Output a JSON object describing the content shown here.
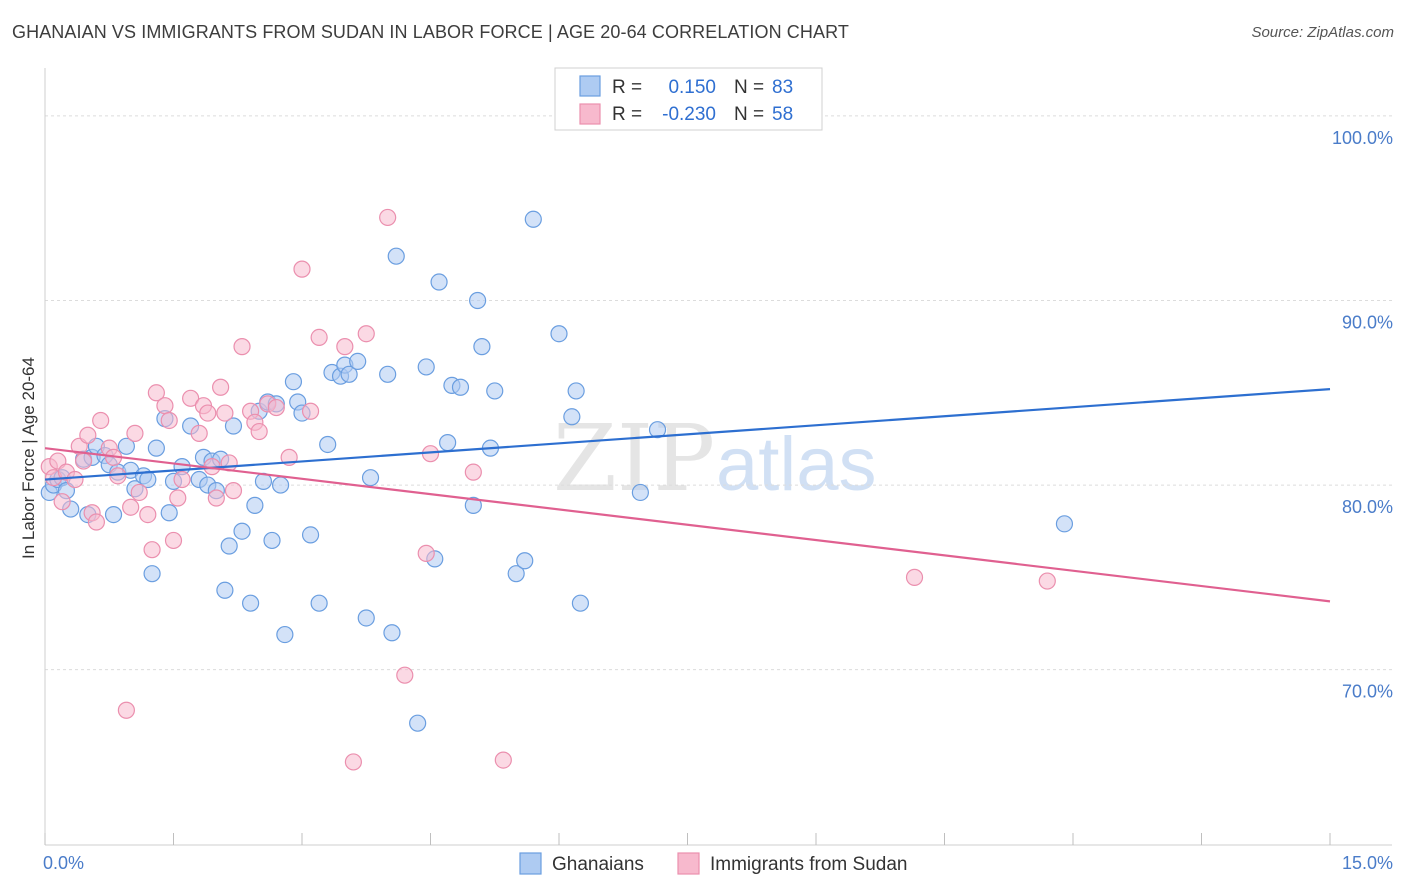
{
  "title": "GHANAIAN VS IMMIGRANTS FROM SUDAN IN LABOR FORCE | AGE 20-64 CORRELATION CHART",
  "source": "Source: ZipAtlas.com",
  "colors": {
    "blue_fill": "#aecbf2",
    "blue_stroke": "#6a9ee0",
    "blue_line": "#2d6fd0",
    "pink_fill": "#f7b9cd",
    "pink_stroke": "#eb8fae",
    "pink_line": "#e06090",
    "grid": "#dcdcdc",
    "tick_text": "#4a7cc9"
  },
  "legend": {
    "r_label": "R =",
    "n_label": "N =",
    "series": [
      {
        "r": "0.150",
        "n": "83"
      },
      {
        "r": "-0.230",
        "n": "58"
      }
    ]
  },
  "watermark": {
    "zip": "ZIP",
    "atlas": "atlas"
  },
  "chart_data": {
    "type": "scatter",
    "title": "GHANAIAN VS IMMIGRANTS FROM SUDAN IN LABOR FORCE | AGE 20-64 CORRELATION CHART",
    "xlabel": "",
    "ylabel": "In Labor Force | Age 20-64",
    "xlim": [
      0,
      15
    ],
    "ylim": [
      60.5,
      102
    ],
    "x_tick_labels": [
      "0.0%",
      "15.0%"
    ],
    "y_ticks": [
      70,
      80,
      90,
      100
    ],
    "y_tick_labels": [
      "70.0%",
      "80.0%",
      "90.0%",
      "100.0%"
    ],
    "grid": true,
    "legend_placement": "top-center",
    "series": [
      {
        "name": "Ghanaians",
        "r": 0.15,
        "n": 83,
        "trend": {
          "x": [
            0,
            15
          ],
          "y": [
            80.3,
            85.2
          ]
        },
        "points": [
          [
            0.05,
            79.6
          ],
          [
            0.1,
            80.0
          ],
          [
            0.15,
            80.3
          ],
          [
            0.2,
            80.4
          ],
          [
            0.25,
            79.7
          ],
          [
            0.3,
            78.7
          ],
          [
            0.45,
            81.4
          ],
          [
            0.5,
            78.4
          ],
          [
            0.55,
            81.5
          ],
          [
            0.6,
            82.1
          ],
          [
            0.7,
            81.6
          ],
          [
            0.75,
            81.1
          ],
          [
            0.8,
            78.4
          ],
          [
            0.85,
            80.7
          ],
          [
            0.95,
            82.1
          ],
          [
            1.0,
            80.8
          ],
          [
            1.05,
            79.8
          ],
          [
            1.15,
            80.5
          ],
          [
            1.2,
            80.3
          ],
          [
            1.25,
            75.2
          ],
          [
            1.3,
            82.0
          ],
          [
            1.4,
            83.6
          ],
          [
            1.45,
            78.5
          ],
          [
            1.5,
            80.2
          ],
          [
            1.6,
            81.0
          ],
          [
            1.7,
            83.2
          ],
          [
            1.8,
            80.3
          ],
          [
            1.85,
            81.5
          ],
          [
            1.9,
            80.0
          ],
          [
            1.95,
            81.3
          ],
          [
            2.0,
            79.7
          ],
          [
            2.05,
            81.4
          ],
          [
            2.1,
            74.3
          ],
          [
            2.15,
            76.7
          ],
          [
            2.2,
            83.2
          ],
          [
            2.3,
            77.5
          ],
          [
            2.4,
            73.6
          ],
          [
            2.45,
            78.9
          ],
          [
            2.5,
            84.0
          ],
          [
            2.55,
            80.2
          ],
          [
            2.6,
            84.5
          ],
          [
            2.65,
            77.0
          ],
          [
            2.7,
            84.4
          ],
          [
            2.75,
            80.0
          ],
          [
            2.8,
            71.9
          ],
          [
            2.9,
            85.6
          ],
          [
            2.95,
            84.5
          ],
          [
            3.0,
            83.9
          ],
          [
            3.1,
            77.3
          ],
          [
            3.2,
            73.6
          ],
          [
            3.3,
            82.2
          ],
          [
            3.35,
            86.1
          ],
          [
            3.45,
            85.9
          ],
          [
            3.5,
            86.5
          ],
          [
            3.55,
            86.0
          ],
          [
            3.65,
            86.7
          ],
          [
            3.75,
            72.8
          ],
          [
            3.8,
            80.4
          ],
          [
            4.0,
            86.0
          ],
          [
            4.05,
            72.0
          ],
          [
            4.1,
            92.4
          ],
          [
            4.35,
            67.1
          ],
          [
            4.45,
            86.4
          ],
          [
            4.55,
            76.0
          ],
          [
            4.6,
            91.0
          ],
          [
            4.7,
            82.3
          ],
          [
            4.75,
            85.4
          ],
          [
            4.85,
            85.3
          ],
          [
            5.0,
            78.9
          ],
          [
            5.05,
            90.0
          ],
          [
            5.1,
            87.5
          ],
          [
            5.2,
            82.0
          ],
          [
            5.25,
            85.1
          ],
          [
            5.5,
            75.2
          ],
          [
            5.6,
            75.9
          ],
          [
            5.7,
            94.4
          ],
          [
            6.0,
            88.2
          ],
          [
            6.15,
            83.7
          ],
          [
            6.2,
            85.1
          ],
          [
            6.25,
            73.6
          ],
          [
            6.95,
            79.6
          ],
          [
            7.15,
            83.0
          ],
          [
            11.9,
            77.9
          ]
        ]
      },
      {
        "name": "Immigrants from Sudan",
        "r": -0.23,
        "n": 58,
        "trend": {
          "x": [
            0,
            15
          ],
          "y": [
            82.0,
            73.7
          ]
        },
        "points": [
          [
            0.05,
            81.0
          ],
          [
            0.1,
            80.4
          ],
          [
            0.15,
            81.3
          ],
          [
            0.2,
            79.1
          ],
          [
            0.25,
            80.7
          ],
          [
            0.35,
            80.3
          ],
          [
            0.4,
            82.1
          ],
          [
            0.45,
            81.3
          ],
          [
            0.5,
            82.7
          ],
          [
            0.55,
            78.5
          ],
          [
            0.6,
            78.0
          ],
          [
            0.65,
            83.5
          ],
          [
            0.75,
            82.0
          ],
          [
            0.8,
            81.5
          ],
          [
            0.85,
            80.5
          ],
          [
            0.95,
            67.8
          ],
          [
            1.0,
            78.8
          ],
          [
            1.05,
            82.8
          ],
          [
            1.1,
            79.6
          ],
          [
            1.2,
            78.4
          ],
          [
            1.25,
            76.5
          ],
          [
            1.3,
            85.0
          ],
          [
            1.4,
            84.3
          ],
          [
            1.45,
            83.5
          ],
          [
            1.5,
            77.0
          ],
          [
            1.55,
            79.3
          ],
          [
            1.6,
            80.3
          ],
          [
            1.7,
            84.7
          ],
          [
            1.8,
            82.8
          ],
          [
            1.85,
            84.3
          ],
          [
            1.9,
            83.9
          ],
          [
            1.95,
            81.0
          ],
          [
            2.0,
            79.3
          ],
          [
            2.05,
            85.3
          ],
          [
            2.1,
            83.9
          ],
          [
            2.15,
            81.2
          ],
          [
            2.2,
            79.7
          ],
          [
            2.3,
            87.5
          ],
          [
            2.4,
            84.0
          ],
          [
            2.45,
            83.4
          ],
          [
            2.5,
            82.9
          ],
          [
            2.6,
            84.4
          ],
          [
            2.7,
            84.2
          ],
          [
            2.85,
            81.5
          ],
          [
            3.0,
            91.7
          ],
          [
            3.1,
            84.0
          ],
          [
            3.2,
            88.0
          ],
          [
            3.5,
            87.5
          ],
          [
            3.6,
            65.0
          ],
          [
            3.75,
            88.2
          ],
          [
            4.0,
            94.5
          ],
          [
            4.2,
            69.7
          ],
          [
            4.45,
            76.3
          ],
          [
            4.5,
            81.7
          ],
          [
            5.0,
            80.7
          ],
          [
            5.35,
            65.1
          ],
          [
            10.15,
            75.0
          ],
          [
            11.7,
            74.8
          ]
        ]
      }
    ]
  }
}
